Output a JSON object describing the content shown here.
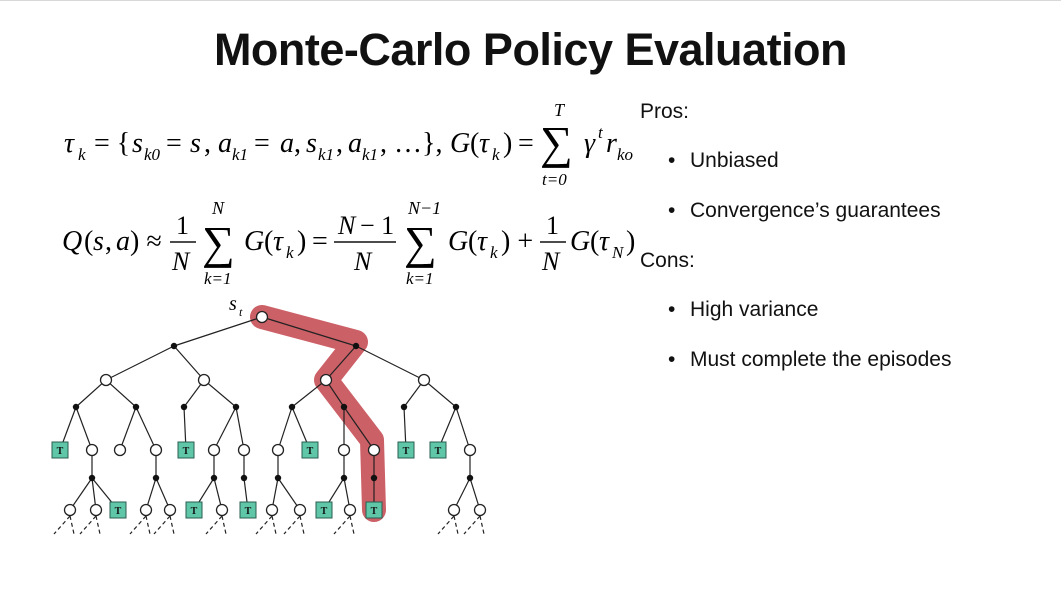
{
  "title": "Monte-Carlo Policy Evaluation",
  "equation1": {
    "lhs": "τ",
    "lhs_sub": "k",
    "body": "= {s",
    "sum_upper": "T",
    "sum_lower": "t=0"
  },
  "equation2": {
    "sum_upper": "N",
    "sum_lower": "k=1",
    "sum2_upper": "N−1",
    "sum2_lower": "k=1"
  },
  "pros": {
    "heading": "Pros:",
    "items": [
      "Unbiased",
      "Convergence’s guarantees"
    ]
  },
  "cons": {
    "heading": "Cons:",
    "items": [
      "High variance",
      "Must complete the episodes"
    ]
  },
  "tree": {
    "root_label": "s",
    "root_label_sub": "t",
    "terminal_label": "T",
    "highlight_color": "#c8535a",
    "terminal_color": "#5fc7a8"
  }
}
